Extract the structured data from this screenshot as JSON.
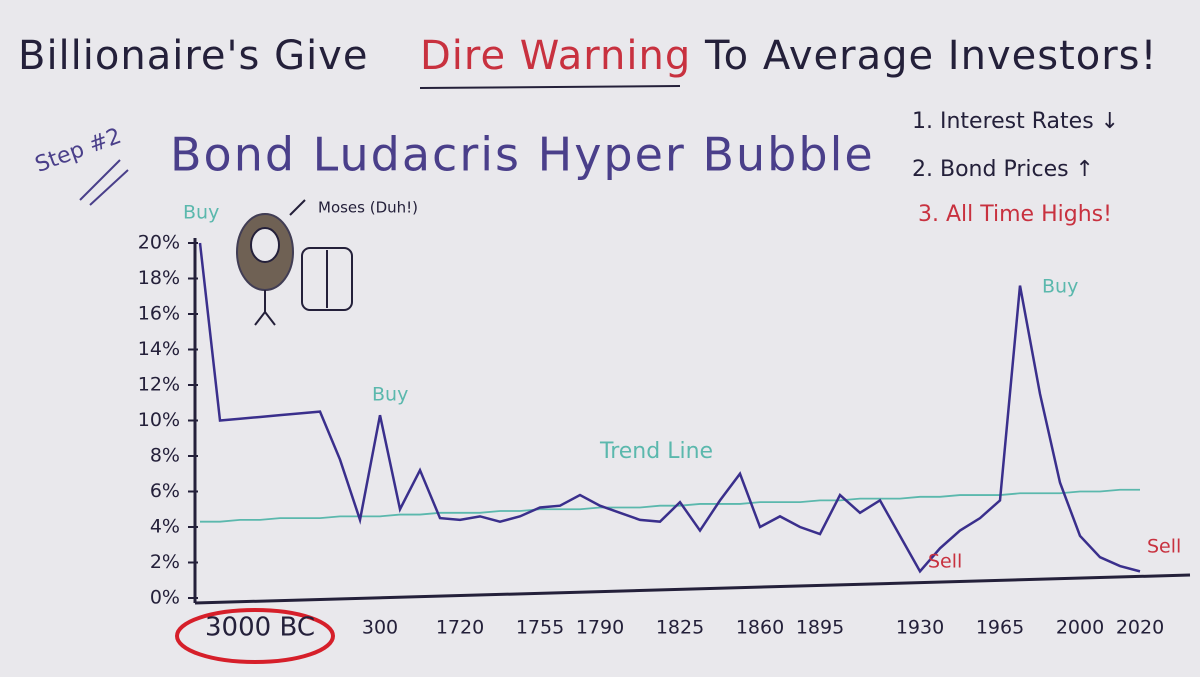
{
  "header": {
    "title_parts": [
      "Billionaire's Give",
      "Dire Warning",
      "To Average Investors!"
    ],
    "subtitle": "Bond Ludacris Hyper Bubble",
    "step": "Step #2"
  },
  "notes": [
    "1. Interest Rates ↓",
    "2. Bond Prices ↑",
    "3. All Time Highs!"
  ],
  "figure_label": "Moses (Duh!)",
  "chart_data": {
    "type": "line",
    "categories": [
      null,
      null,
      null,
      "3000 BC",
      null,
      null,
      null,
      null,
      null,
      "300",
      null,
      null,
      null,
      "1720",
      null,
      null,
      null,
      "1755",
      null,
      null,
      "1790",
      null,
      null,
      null,
      "1825",
      null,
      null,
      null,
      "1860",
      null,
      null,
      "1895",
      null,
      null,
      null,
      null,
      "1930",
      null,
      null,
      null,
      "1965",
      null,
      null,
      null,
      "2000",
      null,
      null,
      "2020"
    ],
    "series": [
      {
        "color": "#3a2f8c",
        "values": [
          20,
          10,
          10.1,
          10.2,
          10.3,
          10.4,
          10.5,
          7.8,
          4.4,
          10.3,
          5,
          7.2,
          4.5,
          4.4,
          4.6,
          4.3,
          4.6,
          5.1,
          5.2,
          5.8,
          5.2,
          4.8,
          4.4,
          4.3,
          5.4,
          3.8,
          5.5,
          7.0,
          4.0,
          4.6,
          4.0,
          3.6,
          5.8,
          4.8,
          5.5,
          3.5,
          1.5,
          2.8,
          3.8,
          4.5,
          5.5,
          17.6,
          11.5,
          6.5,
          3.5,
          2.3,
          1.8,
          1.5
        ]
      },
      {
        "name": "Trend Line",
        "color": "#5bb8ad",
        "values": [
          4.3,
          4.3,
          4.4,
          4.4,
          4.5,
          4.5,
          4.5,
          4.6,
          4.6,
          4.6,
          4.7,
          4.7,
          4.8,
          4.8,
          4.8,
          4.9,
          4.9,
          5.0,
          5.0,
          5.0,
          5.1,
          5.1,
          5.1,
          5.2,
          5.2,
          5.3,
          5.3,
          5.3,
          5.4,
          5.4,
          5.4,
          5.5,
          5.5,
          5.6,
          5.6,
          5.6,
          5.7,
          5.7,
          5.8,
          5.8,
          5.8,
          5.9,
          5.9,
          5.9,
          6.0,
          6.0,
          6.1,
          6.1
        ]
      }
    ],
    "annotations": [
      "Buy",
      "Buy",
      "Buy",
      "Sell",
      "Sell"
    ],
    "ylim": [
      0,
      20
    ],
    "yticks": [
      {
        "value": 0,
        "label": "0%"
      },
      {
        "value": 2,
        "label": "2%"
      },
      {
        "value": 4,
        "label": "4%"
      },
      {
        "value": 6,
        "label": "6%"
      },
      {
        "value": 8,
        "label": "8%"
      },
      {
        "value": 10,
        "label": "10%"
      },
      {
        "value": 12,
        "label": "12%"
      },
      {
        "value": 14,
        "label": "14%"
      },
      {
        "value": 16,
        "label": "16%"
      },
      {
        "value": 18,
        "label": "18%"
      },
      {
        "value": 20,
        "label": "20%"
      }
    ]
  }
}
